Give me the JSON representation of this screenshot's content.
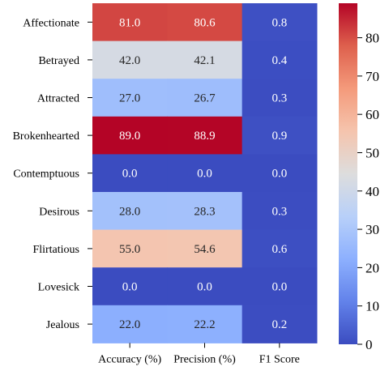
{
  "chart_data": {
    "type": "heatmap",
    "title": "",
    "xlabel": "",
    "ylabel": "",
    "rows": [
      "Affectionate",
      "Betrayed",
      "Attracted",
      "Brokenhearted",
      "Contemptuous",
      "Desirous",
      "Flirtatious",
      "Lovesick",
      "Jealous"
    ],
    "columns": [
      "Accuracy (%)",
      "Precision (%)",
      "F1 Score"
    ],
    "values": [
      [
        81.0,
        80.6,
        0.8
      ],
      [
        42.0,
        42.1,
        0.4
      ],
      [
        27.0,
        26.7,
        0.3
      ],
      [
        89.0,
        88.9,
        0.9
      ],
      [
        0.0,
        0.0,
        0.0
      ],
      [
        28.0,
        28.3,
        0.3
      ],
      [
        55.0,
        54.6,
        0.6
      ],
      [
        0.0,
        0.0,
        0.0
      ],
      [
        22.0,
        22.2,
        0.2
      ]
    ],
    "cell_labels": [
      [
        "81.0",
        "80.6",
        "0.8"
      ],
      [
        "42.0",
        "42.1",
        "0.4"
      ],
      [
        "27.0",
        "26.7",
        "0.3"
      ],
      [
        "89.0",
        "88.9",
        "0.9"
      ],
      [
        "0.0",
        "0.0",
        "0.0"
      ],
      [
        "28.0",
        "28.3",
        "0.3"
      ],
      [
        "55.0",
        "54.6",
        "0.6"
      ],
      [
        "0.0",
        "0.0",
        "0.0"
      ],
      [
        "22.0",
        "22.2",
        "0.2"
      ]
    ],
    "colormap": "coolwarm",
    "vmin": 0,
    "vmax": 89,
    "colorbar": {
      "placement": "right",
      "ticks": [
        0,
        10,
        20,
        30,
        40,
        50,
        60,
        70,
        80
      ],
      "tick_labels": [
        "0",
        "10",
        "20",
        "30",
        "40",
        "50",
        "60",
        "70",
        "80"
      ]
    },
    "grid": false
  }
}
